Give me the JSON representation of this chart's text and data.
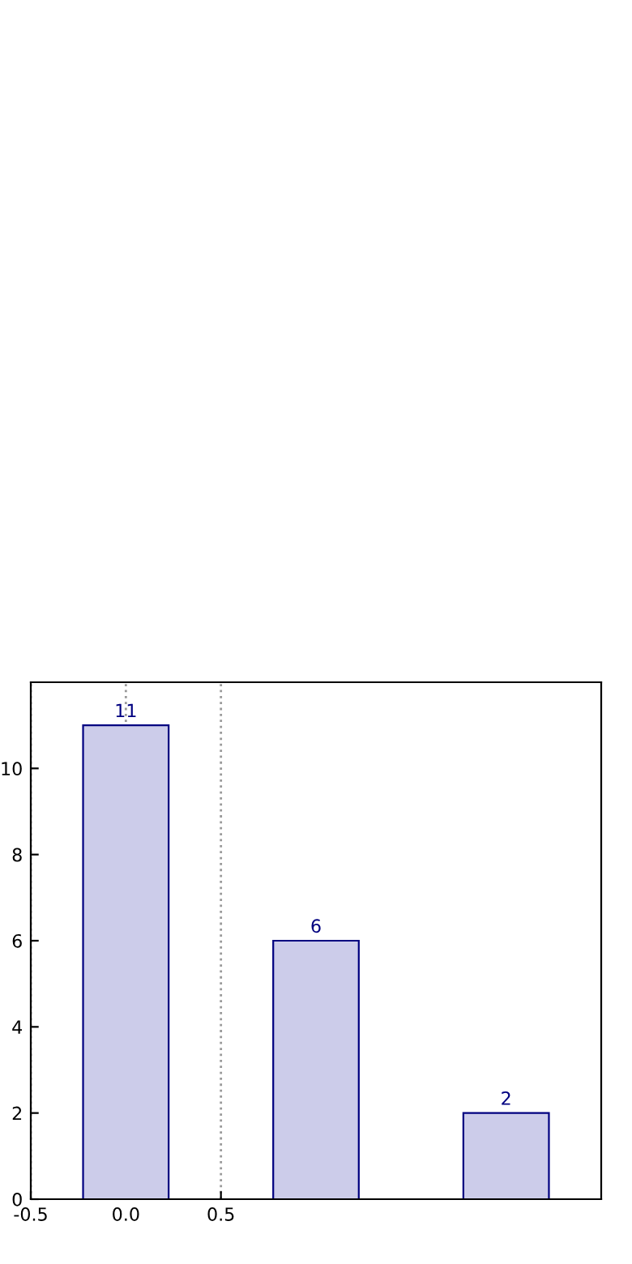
{
  "chart_data": {
    "type": "bar",
    "x": [
      0,
      1,
      2
    ],
    "values": [
      11,
      6,
      2
    ],
    "color": "#ccccea",
    "data_labels": true,
    "xlim": [
      -0.5,
      2.5
    ],
    "xticks": [
      -0.5,
      {
        "value": 0,
        "label": "0.0"
      },
      0.5
    ],
    "ylim": [
      0,
      12
    ],
    "yticks": [
      0,
      2,
      4,
      6,
      8,
      10
    ],
    "grid": "x"
  }
}
